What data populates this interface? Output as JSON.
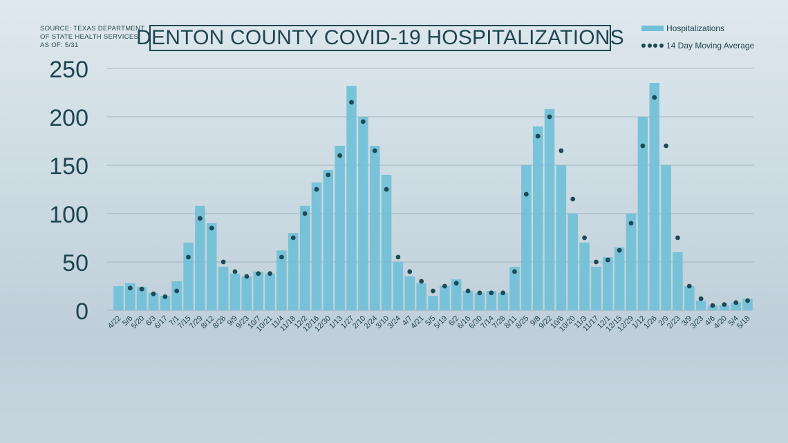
{
  "source": {
    "line1": "SOURCE: TEXAS DEPARTMENT",
    "line2": "OF STATE HEALTH SERVICES",
    "line3": "AS OF: 5/31"
  },
  "legend": {
    "bars_label": "Hospitalizations",
    "line_label": "14 Day Moving Average"
  },
  "colors": {
    "bars": "#6fc0d7",
    "line": "#1c4a56",
    "axis_text": "#1f4550",
    "grid": "#8fa5b0"
  },
  "chart_data": {
    "type": "bar",
    "title": "DENTON COUNTY COVID-19 HOSPITALIZATIONS",
    "ylim": [
      0,
      250
    ],
    "yticks": [
      0,
      50,
      100,
      150,
      200,
      250
    ],
    "grid": true,
    "legend_position": "top-right",
    "categories": [
      "4/22",
      "5/6",
      "5/20",
      "6/3",
      "6/17",
      "7/1",
      "7/15",
      "7/29",
      "8/12",
      "8/26",
      "9/9",
      "9/23",
      "10/7",
      "10/21",
      "11/4",
      "11/18",
      "12/2",
      "12/16",
      "12/30",
      "1/13",
      "1/27",
      "2/10",
      "2/24",
      "3/10",
      "3/24",
      "4/7",
      "4/21",
      "5/5",
      "5/19",
      "6/2",
      "6/16",
      "6/30",
      "7/14",
      "7/28",
      "8/11",
      "8/25",
      "9/8",
      "9/22",
      "10/6",
      "10/20",
      "11/3",
      "11/17",
      "12/1",
      "12/15",
      "12/29",
      "1/12",
      "1/26",
      "2/9",
      "2/23",
      "3/9",
      "3/23",
      "4/6",
      "4/20",
      "5/4",
      "5/18"
    ],
    "series": [
      {
        "name": "Hospitalizations",
        "type": "bar",
        "values": [
          25,
          28,
          24,
          18,
          15,
          30,
          70,
          108,
          90,
          45,
          38,
          35,
          40,
          38,
          62,
          80,
          108,
          132,
          145,
          170,
          232,
          200,
          170,
          140,
          50,
          35,
          28,
          15,
          25,
          32,
          20,
          18,
          20,
          18,
          45,
          150,
          190,
          208,
          150,
          100,
          70,
          45,
          55,
          65,
          100,
          200,
          235,
          150,
          60,
          25,
          10,
          5,
          5,
          8,
          12
        ]
      },
      {
        "name": "14 Day Moving Average",
        "type": "dotted-line",
        "values": [
          null,
          23,
          22,
          17,
          14,
          20,
          55,
          95,
          85,
          50,
          40,
          35,
          38,
          38,
          55,
          75,
          100,
          125,
          140,
          160,
          215,
          195,
          165,
          125,
          55,
          40,
          30,
          20,
          25,
          28,
          20,
          18,
          18,
          18,
          40,
          120,
          180,
          200,
          165,
          115,
          75,
          50,
          52,
          62,
          90,
          170,
          220,
          170,
          75,
          25,
          12,
          5,
          6,
          8,
          10
        ]
      }
    ]
  }
}
